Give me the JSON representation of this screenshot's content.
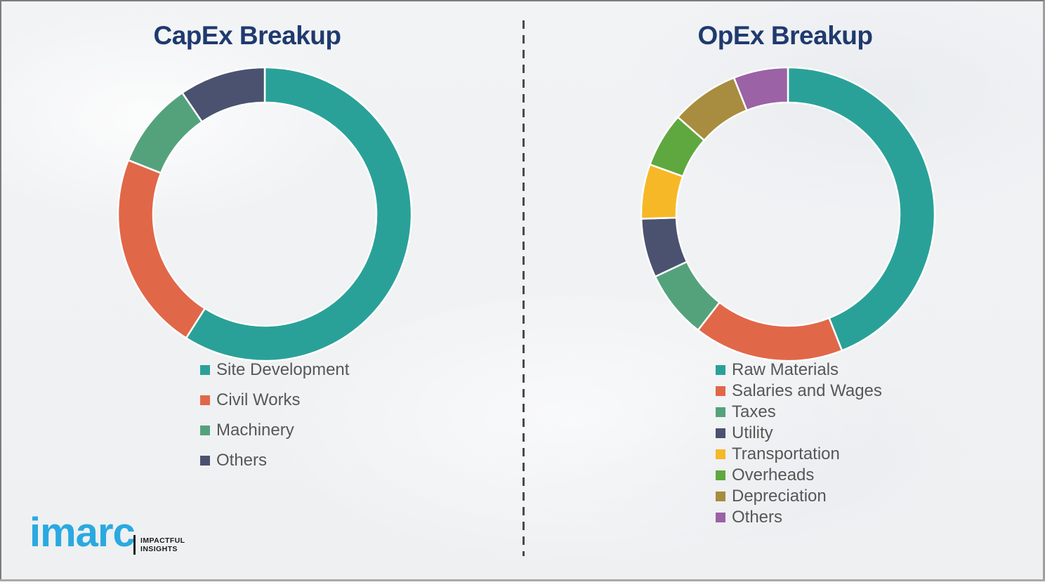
{
  "page": {
    "background_color": "#f2f3f5",
    "divider_color": "#4a4a4a",
    "title_color": "#1f3a6e",
    "legend_text_color": "#575757"
  },
  "chart_data": [
    {
      "id": "capex",
      "type": "donut",
      "title": "CapEx Breakup",
      "categories": [
        "Site Development",
        "Civil Works",
        "Machinery",
        "Others"
      ],
      "values": [
        59,
        22,
        9.5,
        9.5
      ],
      "colors": [
        "#2aa198",
        "#e16749",
        "#54a27c",
        "#4b5270"
      ],
      "start_angle": 0,
      "legend_position": "bottom-left",
      "legend_labels": [
        "Site Development",
        "Civil Works",
        "Machinery",
        "Others"
      ]
    },
    {
      "id": "opex",
      "type": "donut",
      "title": "OpEx Breakup",
      "categories": [
        "Raw Materials",
        "Salaries and Wages",
        "Taxes",
        "Utility",
        "Transportation",
        "Overheads",
        "Depreciation",
        "Others"
      ],
      "values": [
        44,
        16.5,
        7.5,
        6.5,
        6,
        6,
        7.5,
        6
      ],
      "colors": [
        "#2aa198",
        "#e16749",
        "#54a27c",
        "#4b5270",
        "#f6b827",
        "#5fa83f",
        "#a88c3f",
        "#9b62a5"
      ],
      "start_angle": 0,
      "legend_position": "bottom-left",
      "legend_labels": [
        "Raw Materials",
        "Salaries and Wages",
        "Taxes",
        "Utility",
        "Transportation",
        "Overheads",
        "Depreciation",
        "Others"
      ]
    }
  ],
  "logo": {
    "wordmark": "imarc",
    "tagline_line1": "IMPACTFUL",
    "tagline_line2": "INSIGHTS",
    "wordmark_color": "#2aa9e0"
  }
}
